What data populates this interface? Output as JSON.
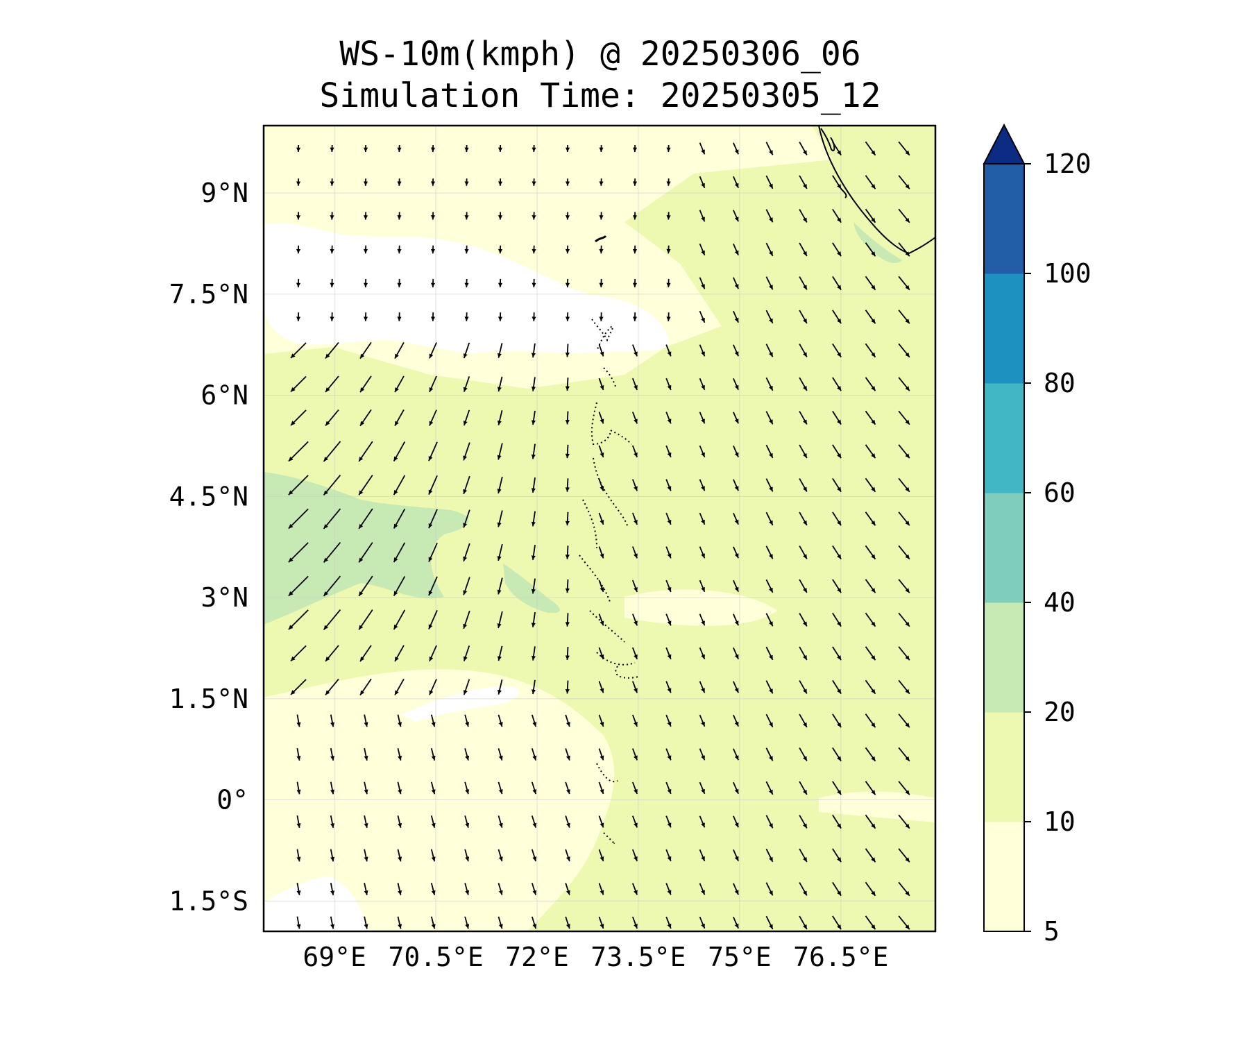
{
  "title": {
    "line1": "WS-10m(kmph) @ 20250306_06",
    "line2": "Simulation Time: 20250305_12"
  },
  "map": {
    "lon_range": [
      67.95,
      77.9
    ],
    "lat_range": [
      -1.95,
      10.0
    ],
    "lon_ticks": [
      {
        "value": 69.0,
        "label": "69°E"
      },
      {
        "value": 70.5,
        "label": "70.5°E"
      },
      {
        "value": 72.0,
        "label": "72°E"
      },
      {
        "value": 73.5,
        "label": "73.5°E"
      },
      {
        "value": 75.0,
        "label": "75°E"
      },
      {
        "value": 76.5,
        "label": "76.5°E"
      }
    ],
    "lat_ticks": [
      {
        "value": 9.0,
        "label": "9°N"
      },
      {
        "value": 7.5,
        "label": "7.5°N"
      },
      {
        "value": 6.0,
        "label": "6°N"
      },
      {
        "value": 4.5,
        "label": "4.5°N"
      },
      {
        "value": 3.0,
        "label": "3°N"
      },
      {
        "value": 1.5,
        "label": "1.5°N"
      },
      {
        "value": 0.0,
        "label": "0°"
      },
      {
        "value": -1.5,
        "label": "1.5°S"
      }
    ],
    "gridlines": true
  },
  "colorbar": {
    "levels": [
      5,
      10,
      20,
      40,
      60,
      80,
      100,
      120
    ],
    "tick_labels": [
      "5",
      "10",
      "20",
      "40",
      "60",
      "80",
      "100",
      "120"
    ],
    "colors": [
      "#ffffd9",
      "#edf8b1",
      "#c7e9b4",
      "#7fcdbb",
      "#41b6c4",
      "#1d91c0",
      "#225ea8",
      "#0c2c84"
    ],
    "extend": "max"
  },
  "colors": {
    "below_min": "#ffffff",
    "band_5_10": "#ffffd9",
    "band_10_20": "#edf8b1",
    "band_20_40": "#c7e9b4"
  }
}
